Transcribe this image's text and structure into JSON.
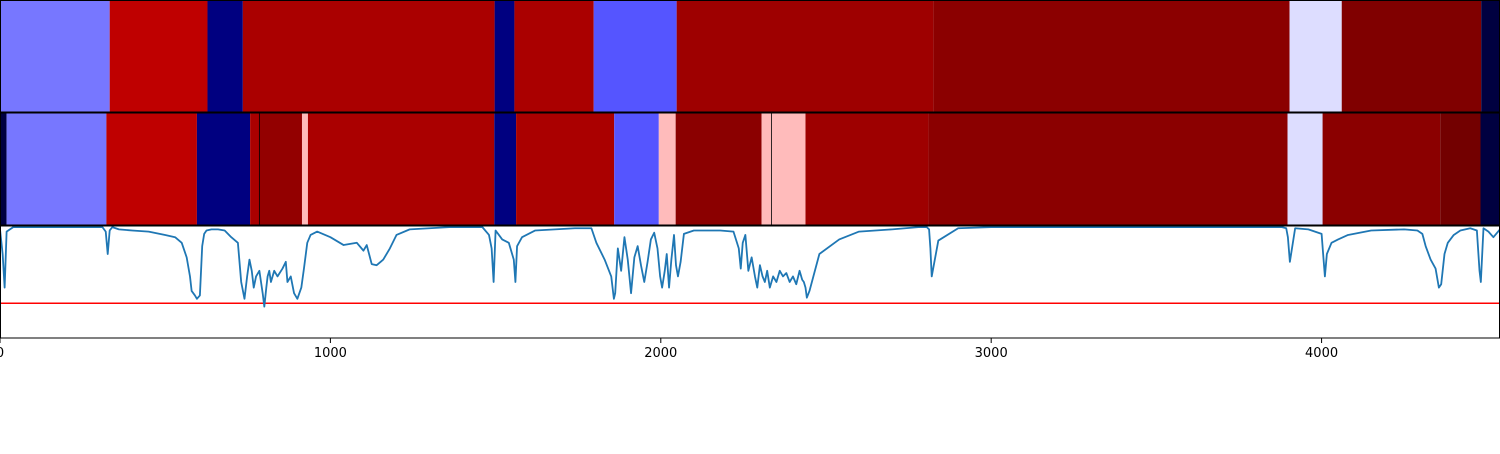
{
  "chart_data": [
    {
      "type": "heatmap",
      "panel": "segmentation-strip-top",
      "xlim": [
        0,
        4540
      ],
      "segments": [
        {
          "start": 0,
          "end": 332,
          "color": "#7777ff"
        },
        {
          "start": 332,
          "end": 628,
          "color": "#bf0000"
        },
        {
          "start": 628,
          "end": 735,
          "color": "#000080"
        },
        {
          "start": 735,
          "end": 1497,
          "color": "#aa0000"
        },
        {
          "start": 1497,
          "end": 1557,
          "color": "#000080"
        },
        {
          "start": 1557,
          "end": 1797,
          "color": "#aa0000"
        },
        {
          "start": 1797,
          "end": 2048,
          "color": "#5555ff"
        },
        {
          "start": 2048,
          "end": 2825,
          "color": "#9e0000"
        },
        {
          "start": 2825,
          "end": 3903,
          "color": "#8b0000"
        },
        {
          "start": 3903,
          "end": 4061,
          "color": "#ddddff"
        },
        {
          "start": 4061,
          "end": 4483,
          "color": "#800000"
        },
        {
          "start": 4483,
          "end": 4540,
          "color": "#000040"
        }
      ]
    },
    {
      "type": "heatmap",
      "panel": "segmentation-strip-bottom",
      "xlim": [
        0,
        4540
      ],
      "segments": [
        {
          "start": 0,
          "end": 20,
          "color": "#000040"
        },
        {
          "start": 20,
          "end": 322,
          "color": "#7777ff"
        },
        {
          "start": 322,
          "end": 596,
          "color": "#bf0000"
        },
        {
          "start": 596,
          "end": 757,
          "color": "#000080"
        },
        {
          "start": 757,
          "end": 785,
          "color": "#aa0000"
        },
        {
          "start": 785,
          "end": 914,
          "color": "#930000"
        },
        {
          "start": 914,
          "end": 932,
          "color": "#ffbbbb"
        },
        {
          "start": 932,
          "end": 1496,
          "color": "#aa0000"
        },
        {
          "start": 1496,
          "end": 1562,
          "color": "#000080"
        },
        {
          "start": 1562,
          "end": 1859,
          "color": "#aa0000"
        },
        {
          "start": 1859,
          "end": 1994,
          "color": "#5555ff"
        },
        {
          "start": 1994,
          "end": 2045,
          "color": "#ffbbbb"
        },
        {
          "start": 2045,
          "end": 2305,
          "color": "#8b0000"
        },
        {
          "start": 2305,
          "end": 2335,
          "color": "#ffbbbb"
        },
        {
          "start": 2335,
          "end": 2438,
          "color": "#ffbbbb"
        },
        {
          "start": 2438,
          "end": 2810,
          "color": "#9e0000"
        },
        {
          "start": 2810,
          "end": 3897,
          "color": "#8b0000"
        },
        {
          "start": 3897,
          "end": 4003,
          "color": "#ddddff"
        },
        {
          "start": 4003,
          "end": 4359,
          "color": "#8b0000"
        },
        {
          "start": 4359,
          "end": 4481,
          "color": "#730000"
        },
        {
          "start": 4481,
          "end": 4540,
          "color": "#000040"
        }
      ],
      "boundary_lines": [
        785,
        2335
      ]
    },
    {
      "type": "line",
      "panel": "signal-line",
      "xlim": [
        0,
        4540
      ],
      "ylim": [
        0,
        1
      ],
      "x_ticks": [
        0,
        1000,
        2000,
        3000,
        4000
      ],
      "x_tick_labels": [
        "0",
        "1000",
        "2000",
        "3000",
        "4000"
      ],
      "line_color": "#1f77b4",
      "threshold": {
        "value": 0.31,
        "color": "#ff0000"
      },
      "series": [
        {
          "x": [
            0,
            8,
            14,
            20,
            40,
            80,
            120,
            160,
            200,
            240,
            280,
            310,
            320,
            326,
            332,
            340,
            360,
            400,
            450,
            500,
            530,
            550,
            565,
            575,
            580,
            590,
            596,
            605,
            612,
            618,
            625,
            640,
            660,
            680,
            700,
            720,
            730,
            740,
            748,
            755,
            762,
            768,
            775,
            785,
            795,
            800,
            806,
            810,
            815,
            820,
            830,
            840,
            855,
            865,
            870,
            880,
            890,
            900,
            912,
            920,
            930,
            940,
            960,
            1000,
            1040,
            1080,
            1100,
            1110,
            1125,
            1140,
            1160,
            1180,
            1200,
            1240,
            1300,
            1360,
            1420,
            1460,
            1480,
            1488,
            1494,
            1500,
            1510,
            1520,
            1540,
            1555,
            1560,
            1565,
            1580,
            1620,
            1680,
            1740,
            1790,
            1805,
            1830,
            1850,
            1858,
            1862,
            1870,
            1880,
            1890,
            1900,
            1910,
            1920,
            1930,
            1940,
            1950,
            1960,
            1970,
            1980,
            1990,
            1998,
            2004,
            2012,
            2018,
            2025,
            2032,
            2040,
            2046,
            2052,
            2060,
            2070,
            2100,
            2140,
            2180,
            2220,
            2236,
            2242,
            2248,
            2256,
            2265,
            2275,
            2285,
            2292,
            2300,
            2308,
            2315,
            2322,
            2330,
            2340,
            2350,
            2360,
            2370,
            2380,
            2390,
            2400,
            2410,
            2420,
            2428,
            2433,
            2438,
            2442,
            2450,
            2480,
            2540,
            2600,
            2700,
            2780,
            2805,
            2812,
            2816,
            2820,
            2840,
            2900,
            3000,
            3200,
            3400,
            3600,
            3800,
            3880,
            3893,
            3898,
            3904,
            3920,
            3960,
            4000,
            4006,
            4010,
            4016,
            4030,
            4050,
            4080,
            4150,
            4250,
            4290,
            4305,
            4315,
            4330,
            4345,
            4355,
            4362,
            4372,
            4382,
            4400,
            4420,
            4450,
            4470,
            4478,
            4482,
            4490,
            4505,
            4520,
            4540
          ],
          "y": [
            0.97,
            0.75,
            0.45,
            0.95,
            0.99,
            0.99,
            0.99,
            0.99,
            0.99,
            0.99,
            0.99,
            0.99,
            0.95,
            0.75,
            0.96,
            0.99,
            0.97,
            0.96,
            0.95,
            0.92,
            0.9,
            0.85,
            0.72,
            0.55,
            0.42,
            0.38,
            0.35,
            0.38,
            0.82,
            0.93,
            0.96,
            0.97,
            0.97,
            0.96,
            0.9,
            0.85,
            0.5,
            0.35,
            0.55,
            0.7,
            0.6,
            0.45,
            0.55,
            0.6,
            0.4,
            0.28,
            0.45,
            0.55,
            0.6,
            0.5,
            0.6,
            0.55,
            0.62,
            0.68,
            0.5,
            0.55,
            0.4,
            0.35,
            0.45,
            0.62,
            0.85,
            0.92,
            0.95,
            0.9,
            0.83,
            0.85,
            0.78,
            0.83,
            0.66,
            0.65,
            0.7,
            0.8,
            0.92,
            0.97,
            0.98,
            0.99,
            0.99,
            0.99,
            0.92,
            0.8,
            0.5,
            0.96,
            0.92,
            0.88,
            0.85,
            0.7,
            0.5,
            0.82,
            0.9,
            0.96,
            0.97,
            0.98,
            0.98,
            0.85,
            0.7,
            0.55,
            0.35,
            0.4,
            0.8,
            0.6,
            0.9,
            0.7,
            0.4,
            0.72,
            0.82,
            0.65,
            0.5,
            0.68,
            0.88,
            0.94,
            0.8,
            0.55,
            0.45,
            0.6,
            0.75,
            0.45,
            0.7,
            0.92,
            0.65,
            0.55,
            0.68,
            0.93,
            0.96,
            0.96,
            0.96,
            0.95,
            0.8,
            0.62,
            0.85,
            0.92,
            0.6,
            0.72,
            0.55,
            0.45,
            0.65,
            0.55,
            0.5,
            0.6,
            0.45,
            0.55,
            0.5,
            0.6,
            0.55,
            0.58,
            0.5,
            0.55,
            0.48,
            0.6,
            0.52,
            0.5,
            0.45,
            0.36,
            0.42,
            0.75,
            0.88,
            0.95,
            0.97,
            0.99,
            0.99,
            0.97,
            0.8,
            0.55,
            0.87,
            0.98,
            0.99,
            0.99,
            0.99,
            0.99,
            0.99,
            0.99,
            0.98,
            0.9,
            0.68,
            0.98,
            0.97,
            0.93,
            0.7,
            0.55,
            0.75,
            0.85,
            0.88,
            0.92,
            0.96,
            0.97,
            0.96,
            0.93,
            0.82,
            0.7,
            0.62,
            0.45,
            0.48,
            0.75,
            0.85,
            0.92,
            0.96,
            0.98,
            0.96,
            0.6,
            0.5,
            0.98,
            0.95,
            0.9,
            0.97
          ]
        }
      ]
    }
  ]
}
